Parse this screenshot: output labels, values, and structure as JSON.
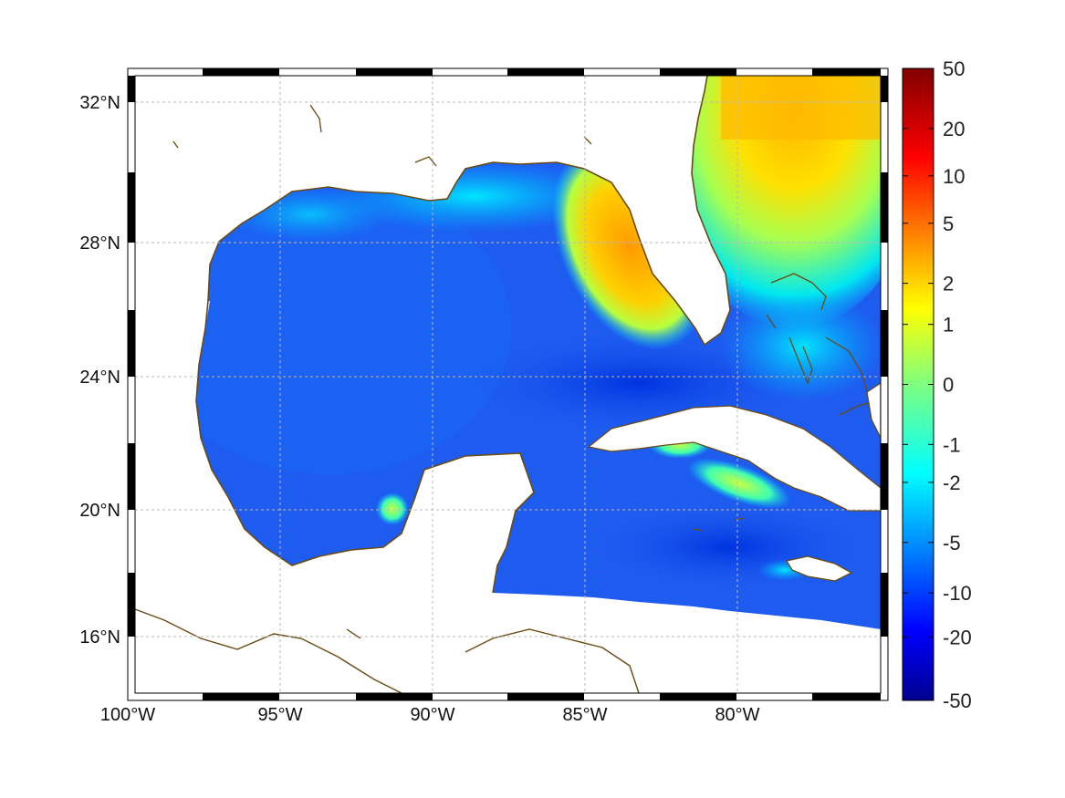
{
  "map": {
    "projection": "lat-lon",
    "lon_range": [
      -100,
      -75
    ],
    "lat_range": [
      14.2,
      33
    ],
    "grid": true,
    "coastline_color": "#6b4a12",
    "frame_style": "alternating black/white border",
    "lon_ticks": [
      {
        "value": -100,
        "label": "100°W"
      },
      {
        "value": -95,
        "label": "95°W"
      },
      {
        "value": -90,
        "label": "90°W"
      },
      {
        "value": -85,
        "label": "85°W"
      },
      {
        "value": -80,
        "label": "80°W"
      }
    ],
    "lat_ticks": [
      {
        "value": 32,
        "label": "32°N"
      },
      {
        "value": 28,
        "label": "28°N"
      },
      {
        "value": 24,
        "label": "24°N"
      },
      {
        "value": 20,
        "label": "20°N"
      },
      {
        "value": 16,
        "label": "16°N"
      }
    ]
  },
  "colorbar": {
    "colormap": "jet",
    "scale": "nonlinear (symmetric log-like)",
    "placement": "right",
    "ticks": [
      {
        "value": 50,
        "label": "50",
        "frac": 1.0
      },
      {
        "value": 20,
        "label": "20",
        "frac": 0.905
      },
      {
        "value": 10,
        "label": "10",
        "frac": 0.83
      },
      {
        "value": 5,
        "label": "5",
        "frac": 0.755
      },
      {
        "value": 2,
        "label": "2",
        "frac": 0.66
      },
      {
        "value": 1,
        "label": "1",
        "frac": 0.595
      },
      {
        "value": 0,
        "label": "0",
        "frac": 0.5
      },
      {
        "value": -1,
        "label": "-1",
        "frac": 0.405
      },
      {
        "value": -2,
        "label": "-2",
        "frac": 0.345
      },
      {
        "value": -5,
        "label": "-5",
        "frac": 0.25
      },
      {
        "value": -10,
        "label": "-10",
        "frac": 0.17
      },
      {
        "value": -20,
        "label": "-20",
        "frac": 0.1
      },
      {
        "value": -50,
        "label": "-50",
        "frac": 0.0
      }
    ]
  },
  "colors": {
    "ocean_background": "#1e5cf0",
    "land": "#ffffff",
    "coastline": "#6b4a12"
  }
}
